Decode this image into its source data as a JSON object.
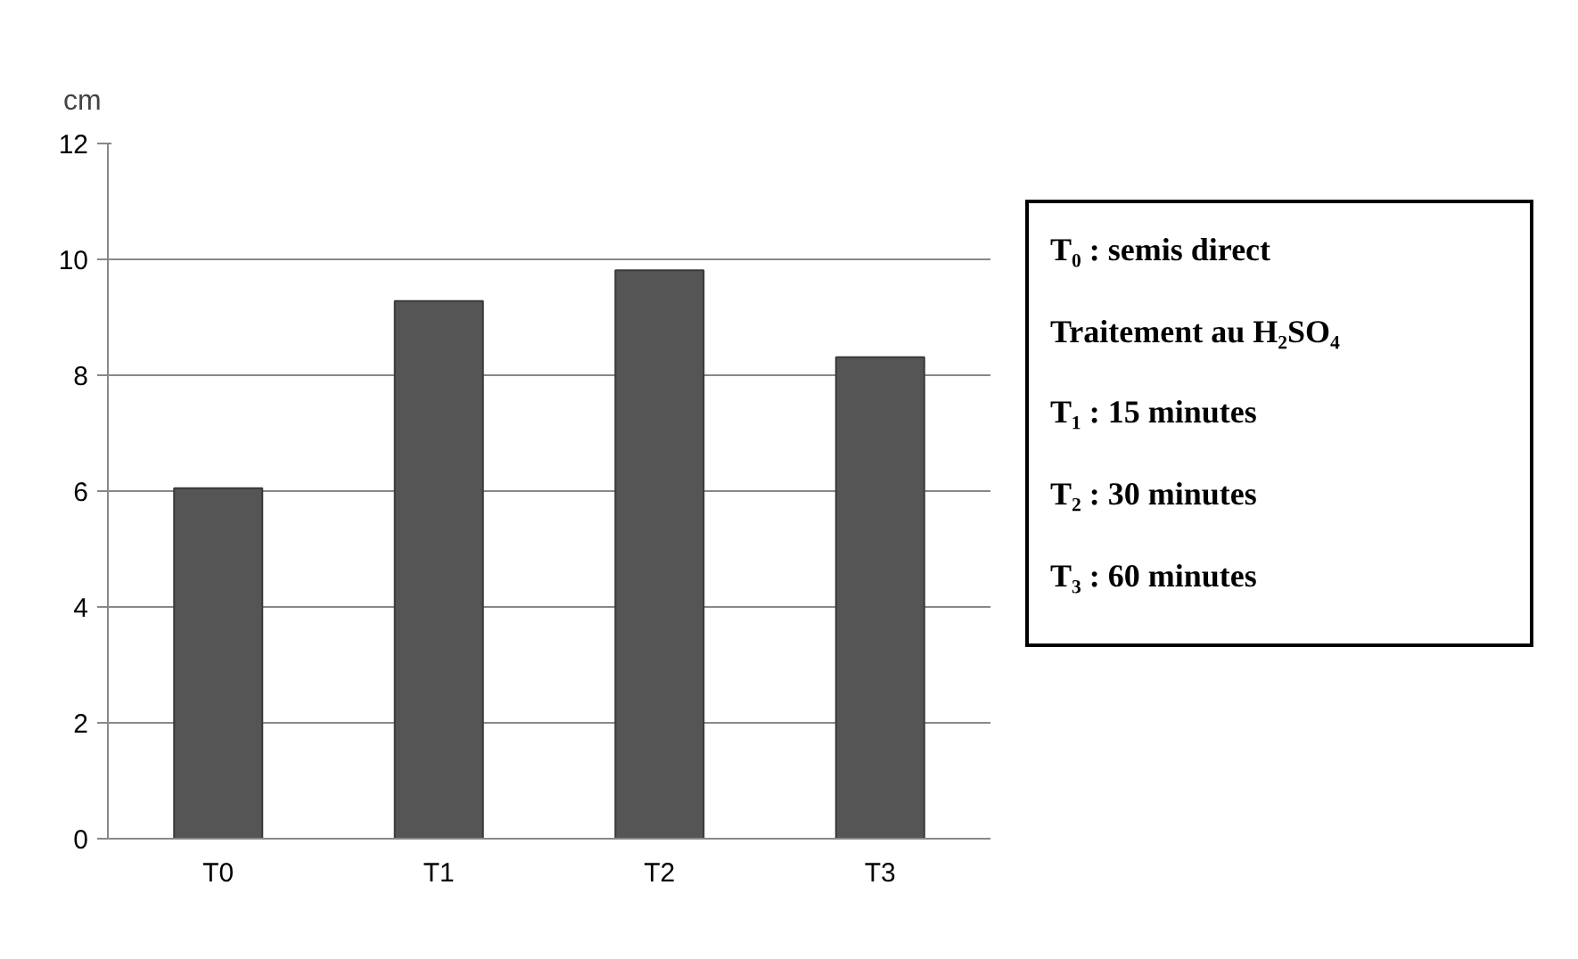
{
  "chart_data": {
    "type": "bar",
    "ylabel": "cm",
    "categories": [
      "T0",
      "T1",
      "T2",
      "T3"
    ],
    "values": [
      6.05,
      9.28,
      9.81,
      8.31
    ],
    "color": "#555555",
    "ylim": [
      0,
      12
    ],
    "yticks": [
      0,
      2,
      4,
      6,
      8,
      10,
      12
    ],
    "grid": "y",
    "annotations": [
      "T₀ : semis direct",
      "Traitement au H₂SO₄",
      "T₁ : 15 minutes",
      "T₂ : 30 minutes",
      "T₃ : 60 minutes"
    ]
  }
}
